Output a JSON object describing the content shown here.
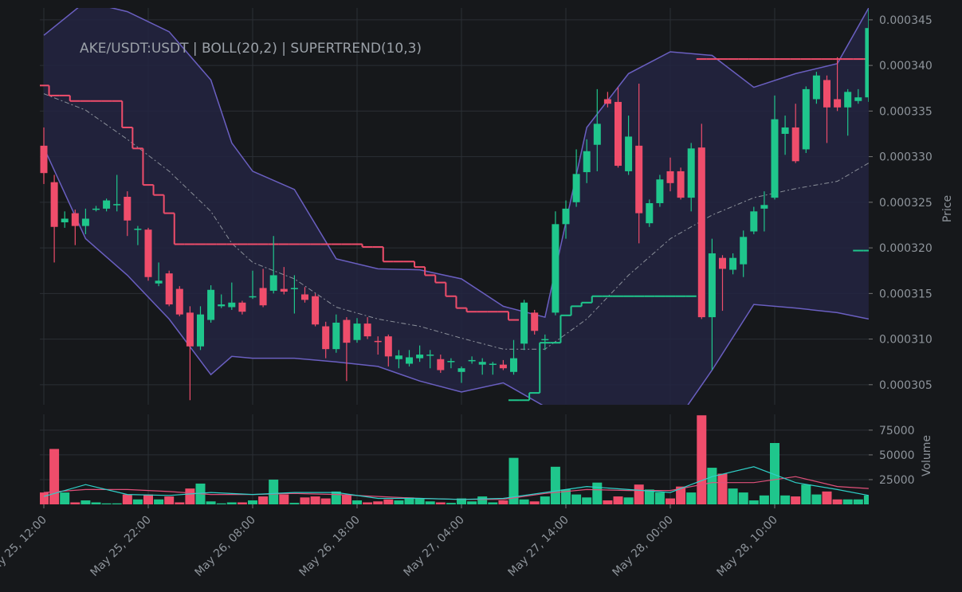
{
  "chart_data": [
    {
      "type": "candlestick",
      "title": "AKE/USDT:USDT | BOLL(20,2) | SUPERTREND(10,3)",
      "ylabel": "Price",
      "categories": [
        "May 25, 12:00",
        null,
        null,
        null,
        null,
        null,
        null,
        null,
        null,
        null,
        "May 25, 22:00",
        null,
        null,
        null,
        null,
        null,
        null,
        null,
        null,
        null,
        "May 26, 08:00",
        null,
        null,
        null,
        null,
        null,
        null,
        null,
        null,
        null,
        "May 26, 18:00",
        null,
        null,
        null,
        null,
        null,
        null,
        null,
        null,
        null,
        "May 27, 04:00",
        null,
        null,
        null,
        null,
        null,
        null,
        null,
        null,
        null,
        "May 27, 14:00",
        null,
        null,
        null,
        null,
        null,
        null,
        null,
        null,
        null,
        "May 28, 00:00",
        null,
        null,
        null,
        null,
        null,
        null,
        null,
        null,
        null,
        "May 28, 10:00",
        null,
        null,
        null,
        null,
        null,
        null,
        null,
        null,
        null
      ],
      "open": [
        0.0003312,
        0.0003272,
        0.0003228,
        0.0003238,
        0.0003224,
        0.0003242,
        0.0003243,
        0.0003247,
        0.0003256,
        0.000322,
        0.000322,
        0.0003161,
        0.0003172,
        0.0003155,
        0.0003129,
        0.0003092,
        0.0003121,
        0.0003136,
        0.0003135,
        0.000314,
        0.0003146,
        0.0003156,
        0.0003153,
        0.0003155,
        0.0003155,
        0.0003149,
        0.0003147,
        0.0003114,
        0.0003089,
        0.0003121,
        0.0003099,
        0.0003117,
        0.0003098,
        0.0003103,
        0.0003078,
        0.0003073,
        0.0003079,
        0.0003082,
        0.0003078,
        0.0003075,
        0.0003064,
        0.0003076,
        0.0003072,
        0.0003072,
        0.0003072,
        0.0003064,
        0.0003095,
        0.0003129,
        0.0003099,
        0.0003129,
        0.0003226,
        0.000325,
        0.0003283,
        0.0003313,
        0.0003363,
        0.000336,
        0.0003284,
        0.0003312,
        0.0003227,
        0.0003249,
        0.0003284,
        0.0003284,
        0.0003255,
        0.000331,
        0.0003124,
        0.0003189,
        0.0003176,
        0.0003182,
        0.0003218,
        0.0003243,
        0.0003255,
        0.0003325,
        0.0003332,
        0.0003308,
        0.0003363,
        0.0003384,
        0.0003363,
        0.0003354,
        0.0003361,
        0.0003365
      ],
      "high": [
        0.0003332,
        0.000328,
        0.000324,
        0.0003242,
        0.0003243,
        0.0003246,
        0.0003254,
        0.000328,
        0.0003262,
        0.0003224,
        0.0003222,
        0.0003184,
        0.0003175,
        0.0003158,
        0.0003136,
        0.0003136,
        0.0003159,
        0.0003149,
        0.0003162,
        0.0003142,
        0.0003175,
        0.0003177,
        0.0003213,
        0.0003179,
        0.000317,
        0.0003157,
        0.000315,
        0.0003119,
        0.0003127,
        0.0003124,
        0.0003123,
        0.0003124,
        0.0003103,
        0.0003105,
        0.0003088,
        0.0003088,
        0.0003093,
        0.0003088,
        0.0003083,
        0.0003079,
        0.000307,
        0.0003081,
        0.0003079,
        0.0003075,
        0.0003077,
        0.0003099,
        0.0003143,
        0.0003132,
        0.0003105,
        0.000324,
        0.0003252,
        0.0003308,
        0.0003319,
        0.0003374,
        0.0003371,
        0.0003376,
        0.0003345,
        0.000338,
        0.0003253,
        0.000328,
        0.0003299,
        0.0003288,
        0.0003315,
        0.0003336,
        0.000321,
        0.0003192,
        0.0003194,
        0.0003219,
        0.0003245,
        0.0003262,
        0.0003367,
        0.0003345,
        0.0003358,
        0.0003377,
        0.0003393,
        0.0003389,
        0.0003409,
        0.0003374,
        0.0003374,
        0.0003461
      ],
      "low": [
        0.000327,
        0.0003184,
        0.0003222,
        0.0003203,
        0.0003215,
        0.000324,
        0.000324,
        0.000324,
        0.0003213,
        0.0003203,
        0.0003164,
        0.0003158,
        0.0003136,
        0.0003125,
        0.0003033,
        0.0003088,
        0.0003118,
        0.0003134,
        0.0003132,
        0.0003127,
        0.0003144,
        0.0003135,
        0.000315,
        0.0003149,
        0.0003128,
        0.000314,
        0.0003114,
        0.0003079,
        0.0003085,
        0.0003054,
        0.0003096,
        0.00031,
        0.0003083,
        0.000307,
        0.0003068,
        0.000307,
        0.0003075,
        0.0003068,
        0.0003063,
        0.0003068,
        0.0003052,
        0.0003073,
        0.0003061,
        0.0003061,
        0.0003066,
        0.0003061,
        0.0003088,
        0.0003105,
        0.0003088,
        0.0003126,
        0.000321,
        0.0003245,
        0.0003271,
        0.0003284,
        0.0003354,
        0.0003288,
        0.000328,
        0.0003205,
        0.0003223,
        0.0003245,
        0.0003262,
        0.0003253,
        0.000324,
        0.0003122,
        0.0003066,
        0.0003131,
        0.0003171,
        0.0003168,
        0.0003215,
        0.0003218,
        0.0003253,
        0.0003302,
        0.0003293,
        0.0003304,
        0.0003358,
        0.0003315,
        0.000335,
        0.0003323,
        0.0003358,
        0.000336
      ],
      "close": [
        0.0003282,
        0.0003223,
        0.0003232,
        0.0003224,
        0.0003232,
        0.0003243,
        0.0003252,
        0.0003248,
        0.000323,
        0.0003221,
        0.0003168,
        0.0003164,
        0.0003138,
        0.0003127,
        0.0003092,
        0.0003127,
        0.0003154,
        0.0003138,
        0.000314,
        0.000313,
        0.0003147,
        0.0003137,
        0.000317,
        0.0003152,
        0.0003156,
        0.0003143,
        0.0003116,
        0.0003089,
        0.0003118,
        0.0003096,
        0.0003117,
        0.0003103,
        0.0003097,
        0.0003081,
        0.0003082,
        0.000308,
        0.0003083,
        0.0003083,
        0.0003066,
        0.0003076,
        0.0003068,
        0.0003077,
        0.0003075,
        0.0003073,
        0.0003068,
        0.0003079,
        0.000314,
        0.0003109,
        0.00031,
        0.0003226,
        0.0003243,
        0.0003281,
        0.0003306,
        0.0003336,
        0.0003358,
        0.000329,
        0.0003322,
        0.0003238,
        0.0003249,
        0.0003275,
        0.0003271,
        0.0003255,
        0.0003309,
        0.0003124,
        0.0003194,
        0.0003177,
        0.0003189,
        0.0003212,
        0.000324,
        0.0003247,
        0.0003341,
        0.0003332,
        0.0003295,
        0.0003374,
        0.0003389,
        0.0003354,
        0.0003354,
        0.0003371,
        0.0003365,
        0.0003441
      ],
      "up_color": "#1fc68c",
      "down_color": "#ef4d6b",
      "ylim": [
        0.0003028,
        0.0003463
      ],
      "yticks": [
        0.000305,
        {
          "value": 0.00031,
          "label": "0.000310"
        },
        0.000315,
        {
          "value": 0.00032,
          "label": "0.000320"
        },
        0.000325,
        {
          "value": 0.00033,
          "label": "0.000330"
        },
        0.000335,
        {
          "value": 0.00034,
          "label": "0.000340"
        },
        0.000345
      ],
      "grid": true,
      "bollinger": {
        "color": "#6a5fc1",
        "mid_color": "#8a8f99",
        "fill": "#232441",
        "x": [
          0,
          4,
          8,
          12,
          16,
          18,
          20,
          24,
          28,
          32,
          36,
          40,
          44,
          48,
          52,
          56,
          60,
          64,
          68,
          72,
          76,
          79
        ],
        "upper": [
          0.0003433,
          0.000347,
          0.0003459,
          0.0003437,
          0.0003384,
          0.0003315,
          0.0003284,
          0.0003264,
          0.0003188,
          0.0003177,
          0.0003176,
          0.0003166,
          0.0003136,
          0.0003124,
          0.0003332,
          0.0003391,
          0.0003415,
          0.0003411,
          0.0003376,
          0.0003391,
          0.0003402,
          0.0003463
        ],
        "middle": [
          0.0003369,
          0.0003351,
          0.0003319,
          0.0003284,
          0.000324,
          0.0003205,
          0.0003184,
          0.0003166,
          0.0003135,
          0.0003122,
          0.0003114,
          0.0003101,
          0.0003089,
          0.0003089,
          0.0003122,
          0.000317,
          0.000321,
          0.0003236,
          0.0003255,
          0.0003265,
          0.0003273,
          0.0003293
        ],
        "lower": [
          0.000331,
          0.000321,
          0.000317,
          0.0003122,
          0.0003061,
          0.0003081,
          0.0003079,
          0.0003079,
          0.0003075,
          0.000307,
          0.0003054,
          0.0003042,
          0.0003052,
          0.0003026,
          0.0003,
          0.0002983,
          0.0003,
          0.0003066,
          0.0003138,
          0.0003134,
          0.0003129,
          0.0003122
        ]
      },
      "supertrend": {
        "down_color": "#ef4d6b",
        "up_color": "#1fc68c",
        "down": [
          0.0003378,
          0.0003367,
          0.0003367,
          0.0003361,
          0.0003361,
          0.0003361,
          0.0003361,
          0.0003361,
          0.0003332,
          0.0003309,
          0.0003269,
          0.0003258,
          0.0003238,
          0.0003204,
          0.0003204,
          0.0003204,
          0.0003204,
          0.0003204,
          0.0003204,
          0.0003204,
          0.0003204,
          0.0003204,
          0.0003204,
          0.0003204,
          0.0003204,
          0.0003204,
          0.0003204,
          0.0003204,
          0.0003204,
          0.0003204,
          0.0003204,
          0.0003201,
          0.0003201,
          0.0003185,
          0.0003185,
          0.0003185,
          0.0003179,
          0.000317,
          0.0003162,
          0.0003147,
          0.0003134,
          0.000313,
          0.000313,
          0.000313,
          0.000313,
          0.0003121,
          null,
          null,
          null,
          null,
          null,
          null,
          null,
          null,
          null,
          null,
          null,
          null,
          null,
          null,
          null,
          null,
          null,
          0.0003407,
          0.0003407,
          0.0003407,
          0.0003407,
          0.0003407,
          0.0003407,
          0.0003407,
          0.0003407,
          0.0003407,
          0.0003407,
          0.0003407,
          0.0003407,
          0.0003407,
          0.0003407,
          0.0003407,
          0.0003407,
          0.0003407
        ],
        "up": [
          null,
          null,
          null,
          null,
          null,
          null,
          null,
          null,
          null,
          null,
          null,
          null,
          null,
          null,
          null,
          null,
          null,
          null,
          null,
          null,
          null,
          null,
          null,
          null,
          null,
          null,
          null,
          null,
          null,
          null,
          null,
          null,
          null,
          null,
          null,
          null,
          null,
          null,
          null,
          null,
          null,
          null,
          null,
          null,
          null,
          0.0003033,
          0.0003033,
          0.0003041,
          0.0003096,
          0.0003096,
          0.0003126,
          0.0003136,
          0.000314,
          0.0003147,
          0.0003147,
          0.0003147,
          0.0003147,
          0.0003147,
          0.0003147,
          0.0003147,
          0.0003147,
          0.0003147,
          0.0003147,
          null,
          null,
          null,
          null,
          null,
          null,
          null,
          null,
          null,
          null,
          null,
          null,
          null,
          null,
          null,
          0.0003197,
          0.0003197
        ]
      }
    },
    {
      "type": "bar",
      "ylabel": "Volume",
      "values": [
        12000,
        56000,
        12000,
        2000,
        4000,
        2000,
        1000,
        1000,
        10000,
        5000,
        10000,
        5000,
        8000,
        2000,
        16000,
        21000,
        3000,
        1000,
        2000,
        2000,
        4000,
        8000,
        25000,
        10000,
        1500,
        7000,
        8000,
        6000,
        13000,
        10000,
        4000,
        2000,
        3000,
        5000,
        4000,
        7000,
        6000,
        3000,
        2000,
        1500,
        6000,
        3000,
        8000,
        2000,
        4000,
        47000,
        5000,
        3000,
        8000,
        38000,
        15000,
        10000,
        7000,
        22000,
        4000,
        8000,
        7000,
        20000,
        15000,
        12000,
        6000,
        18000,
        12000,
        90000,
        37000,
        31000,
        16000,
        12000,
        4000,
        9000,
        62000,
        9000,
        8000,
        20000,
        10000,
        13000,
        5000,
        5000,
        5000,
        9000
      ],
      "ylim": [
        0,
        91000
      ],
      "yticks": [
        25000,
        50000,
        75000
      ],
      "grid": true,
      "ma": {
        "fast_color": "#2fd0c8",
        "slow_color": "#e0507a",
        "x": [
          0,
          4,
          8,
          12,
          16,
          20,
          24,
          28,
          32,
          36,
          40,
          44,
          48,
          52,
          56,
          60,
          64,
          68,
          72,
          76,
          79
        ],
        "fast": [
          8000,
          20000,
          10000,
          9000,
          12000,
          10000,
          12000,
          12000,
          6000,
          6000,
          5000,
          6000,
          12000,
          18000,
          15000,
          12000,
          28000,
          38000,
          22000,
          15000,
          9000
        ],
        "slow": [
          12000,
          15000,
          15000,
          13000,
          10000,
          10000,
          11000,
          10000,
          8000,
          6000,
          5000,
          5000,
          11000,
          15000,
          14000,
          14000,
          22000,
          22000,
          28000,
          18000,
          16000
        ]
      }
    }
  ]
}
